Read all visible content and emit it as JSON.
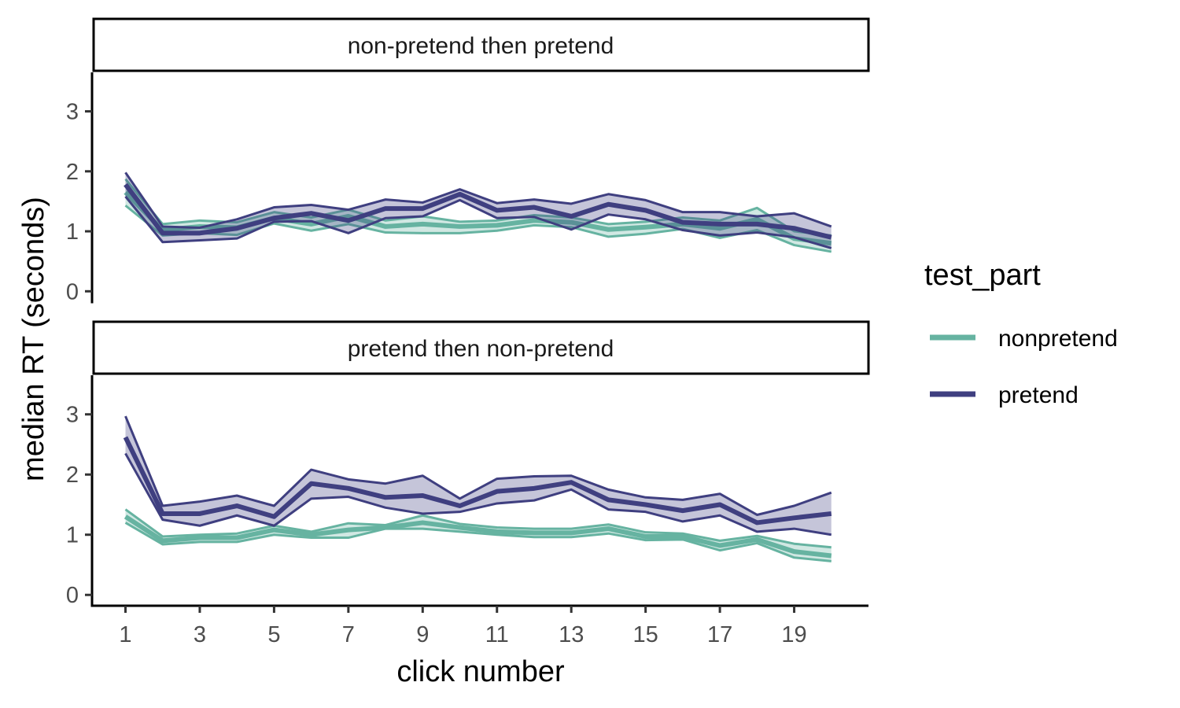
{
  "chart_data": {
    "type": "line",
    "xlabel": "click number",
    "ylabel": "median RT (seconds)",
    "x_ticks": [
      1,
      3,
      5,
      7,
      9,
      11,
      13,
      15,
      17,
      19
    ],
    "y_ticks": [
      0,
      1,
      2,
      3
    ],
    "xlim": [
      0.1,
      21.0
    ],
    "ylim": [
      -0.18,
      3.65
    ],
    "legend": {
      "title": "test_part",
      "position": "right",
      "entries": [
        {
          "name": "nonpretend",
          "color": "#66b3a1"
        },
        {
          "name": "pretend",
          "color": "#3f3f80"
        }
      ]
    },
    "panels": [
      {
        "label": "non-pretend then pretend",
        "series": [
          {
            "name": "nonpretend",
            "color": "#66b3a1",
            "x": [
              1,
              2,
              3,
              4,
              5,
              6,
              7,
              8,
              9,
              10,
              11,
              12,
              13,
              14,
              15,
              16,
              17,
              18,
              19,
              20
            ],
            "mean": [
              1.65,
              1.02,
              1.08,
              1.06,
              1.22,
              1.12,
              1.25,
              1.08,
              1.12,
              1.08,
              1.1,
              1.18,
              1.15,
              1.03,
              1.07,
              1.12,
              1.05,
              1.2,
              0.88,
              0.8
            ],
            "lower": [
              1.43,
              0.93,
              0.97,
              0.94,
              1.13,
              1.01,
              1.12,
              0.98,
              0.97,
              0.97,
              1.01,
              1.1,
              1.07,
              0.91,
              0.96,
              1.04,
              0.89,
              1.02,
              0.77,
              0.66
            ],
            "upper": [
              1.87,
              1.12,
              1.18,
              1.15,
              1.32,
              1.23,
              1.36,
              1.18,
              1.25,
              1.16,
              1.18,
              1.27,
              1.23,
              1.12,
              1.16,
              1.23,
              1.18,
              1.39,
              1.0,
              0.93
            ]
          },
          {
            "name": "pretend",
            "color": "#3f3f80",
            "x": [
              1,
              2,
              3,
              4,
              5,
              6,
              7,
              8,
              9,
              10,
              11,
              12,
              13,
              14,
              15,
              16,
              17,
              18,
              19,
              20
            ],
            "mean": [
              1.78,
              0.97,
              0.97,
              1.05,
              1.22,
              1.3,
              1.18,
              1.38,
              1.38,
              1.62,
              1.35,
              1.4,
              1.25,
              1.45,
              1.35,
              1.15,
              1.12,
              1.12,
              1.05,
              0.9
            ],
            "lower": [
              1.58,
              0.82,
              0.85,
              0.88,
              1.16,
              1.17,
              0.97,
              1.22,
              1.25,
              1.52,
              1.22,
              1.24,
              1.03,
              1.28,
              1.2,
              1.02,
              0.93,
              0.98,
              0.9,
              0.72
            ],
            "upper": [
              1.98,
              1.08,
              1.06,
              1.2,
              1.4,
              1.44,
              1.36,
              1.53,
              1.48,
              1.7,
              1.47,
              1.53,
              1.46,
              1.62,
              1.52,
              1.32,
              1.32,
              1.25,
              1.3,
              1.08
            ]
          }
        ]
      },
      {
        "label": "pretend then non-pretend",
        "series": [
          {
            "name": "nonpretend",
            "color": "#66b3a1",
            "x": [
              1,
              2,
              3,
              4,
              5,
              6,
              7,
              8,
              9,
              10,
              11,
              12,
              13,
              14,
              15,
              16,
              17,
              18,
              19,
              20
            ],
            "mean": [
              1.3,
              0.9,
              0.95,
              0.95,
              1.08,
              1.0,
              1.08,
              1.12,
              1.2,
              1.12,
              1.05,
              1.03,
              1.03,
              1.1,
              0.97,
              0.97,
              0.82,
              0.92,
              0.72,
              0.65
            ],
            "lower": [
              1.2,
              0.84,
              0.88,
              0.88,
              1.0,
              0.95,
              0.95,
              1.1,
              1.1,
              1.05,
              1.0,
              0.96,
              0.96,
              1.02,
              0.91,
              0.92,
              0.74,
              0.86,
              0.62,
              0.56
            ],
            "upper": [
              1.42,
              0.97,
              1.0,
              1.02,
              1.15,
              1.05,
              1.19,
              1.16,
              1.32,
              1.18,
              1.12,
              1.1,
              1.1,
              1.17,
              1.04,
              1.02,
              0.9,
              0.98,
              0.85,
              0.79
            ]
          },
          {
            "name": "pretend",
            "color": "#3f3f80",
            "x": [
              1,
              2,
              3,
              4,
              5,
              6,
              7,
              8,
              9,
              10,
              11,
              12,
              13,
              14,
              15,
              16,
              17,
              18,
              19,
              20
            ],
            "mean": [
              2.62,
              1.35,
              1.35,
              1.48,
              1.3,
              1.85,
              1.77,
              1.62,
              1.65,
              1.48,
              1.72,
              1.77,
              1.87,
              1.58,
              1.5,
              1.4,
              1.5,
              1.2,
              1.28,
              1.35
            ],
            "lower": [
              2.35,
              1.25,
              1.15,
              1.32,
              1.15,
              1.6,
              1.63,
              1.45,
              1.35,
              1.38,
              1.52,
              1.57,
              1.75,
              1.42,
              1.38,
              1.22,
              1.32,
              1.05,
              1.1,
              1.0
            ],
            "upper": [
              2.97,
              1.48,
              1.55,
              1.65,
              1.48,
              2.08,
              1.92,
              1.85,
              1.98,
              1.6,
              1.93,
              1.97,
              1.98,
              1.75,
              1.62,
              1.58,
              1.68,
              1.33,
              1.48,
              1.7
            ]
          }
        ]
      }
    ]
  }
}
